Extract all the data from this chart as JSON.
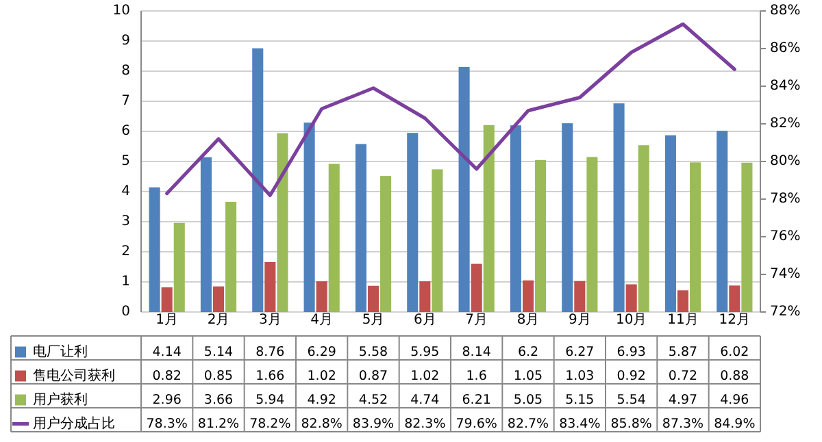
{
  "chart_data": {
    "type": "bar",
    "categories": [
      "1月",
      "2月",
      "3月",
      "4月",
      "5月",
      "6月",
      "7月",
      "8月",
      "9月",
      "10月",
      "11月",
      "12月"
    ],
    "series": [
      {
        "name": "电厂让利",
        "color": "#4f81bd",
        "values": [
          4.14,
          5.14,
          8.76,
          6.29,
          5.58,
          5.95,
          8.14,
          6.2,
          6.27,
          6.93,
          5.87,
          6.02
        ],
        "value_labels": [
          "4.14",
          "5.14",
          "8.76",
          "6.29",
          "5.58",
          "5.95",
          "8.14",
          "6.2",
          "6.27",
          "6.93",
          "5.87",
          "6.02"
        ]
      },
      {
        "name": "售电公司获利",
        "color": "#c0504d",
        "values": [
          0.82,
          0.85,
          1.66,
          1.02,
          0.87,
          1.02,
          1.6,
          1.05,
          1.03,
          0.92,
          0.72,
          0.88
        ],
        "value_labels": [
          "0.82",
          "0.85",
          "1.66",
          "1.02",
          "0.87",
          "1.02",
          "1.6",
          "1.05",
          "1.03",
          "0.92",
          "0.72",
          "0.88"
        ]
      },
      {
        "name": "用户获利",
        "color": "#9bbb59",
        "values": [
          2.96,
          3.66,
          5.94,
          4.92,
          4.52,
          4.74,
          6.21,
          5.05,
          5.15,
          5.54,
          4.97,
          4.96
        ],
        "value_labels": [
          "2.96",
          "3.66",
          "5.94",
          "4.92",
          "4.52",
          "4.74",
          "6.21",
          "5.05",
          "5.15",
          "5.54",
          "4.97",
          "4.96"
        ]
      },
      {
        "name": "用户分成占比",
        "color": "#7b3f9e",
        "type": "line",
        "axis": "y2",
        "values": [
          78.3,
          81.2,
          78.2,
          82.8,
          83.9,
          82.3,
          79.6,
          82.7,
          83.4,
          85.8,
          87.3,
          84.9
        ],
        "value_labels": [
          "78.3%",
          "81.2%",
          "78.2%",
          "82.8%",
          "83.9%",
          "82.3%",
          "79.6%",
          "82.7%",
          "83.4%",
          "85.8%",
          "87.3%",
          "84.9%"
        ]
      }
    ],
    "ylim": [
      0,
      10
    ],
    "yticks": [
      0,
      1,
      2,
      3,
      4,
      5,
      6,
      7,
      8,
      9,
      10
    ],
    "y2lim": [
      72,
      88
    ],
    "y2ticks": [
      {
        "value": 72,
        "label": "72%"
      },
      {
        "value": 74,
        "label": "74%"
      },
      {
        "value": 76,
        "label": "76%"
      },
      {
        "value": 78,
        "label": "78%"
      },
      {
        "value": 80,
        "label": "80%"
      },
      {
        "value": 82,
        "label": "82%"
      },
      {
        "value": 84,
        "label": "84%"
      },
      {
        "value": 86,
        "label": "86%"
      },
      {
        "value": 88,
        "label": "88%"
      }
    ],
    "grid": "y",
    "legend": "bottom",
    "marker": "none",
    "line_style": "solid"
  }
}
